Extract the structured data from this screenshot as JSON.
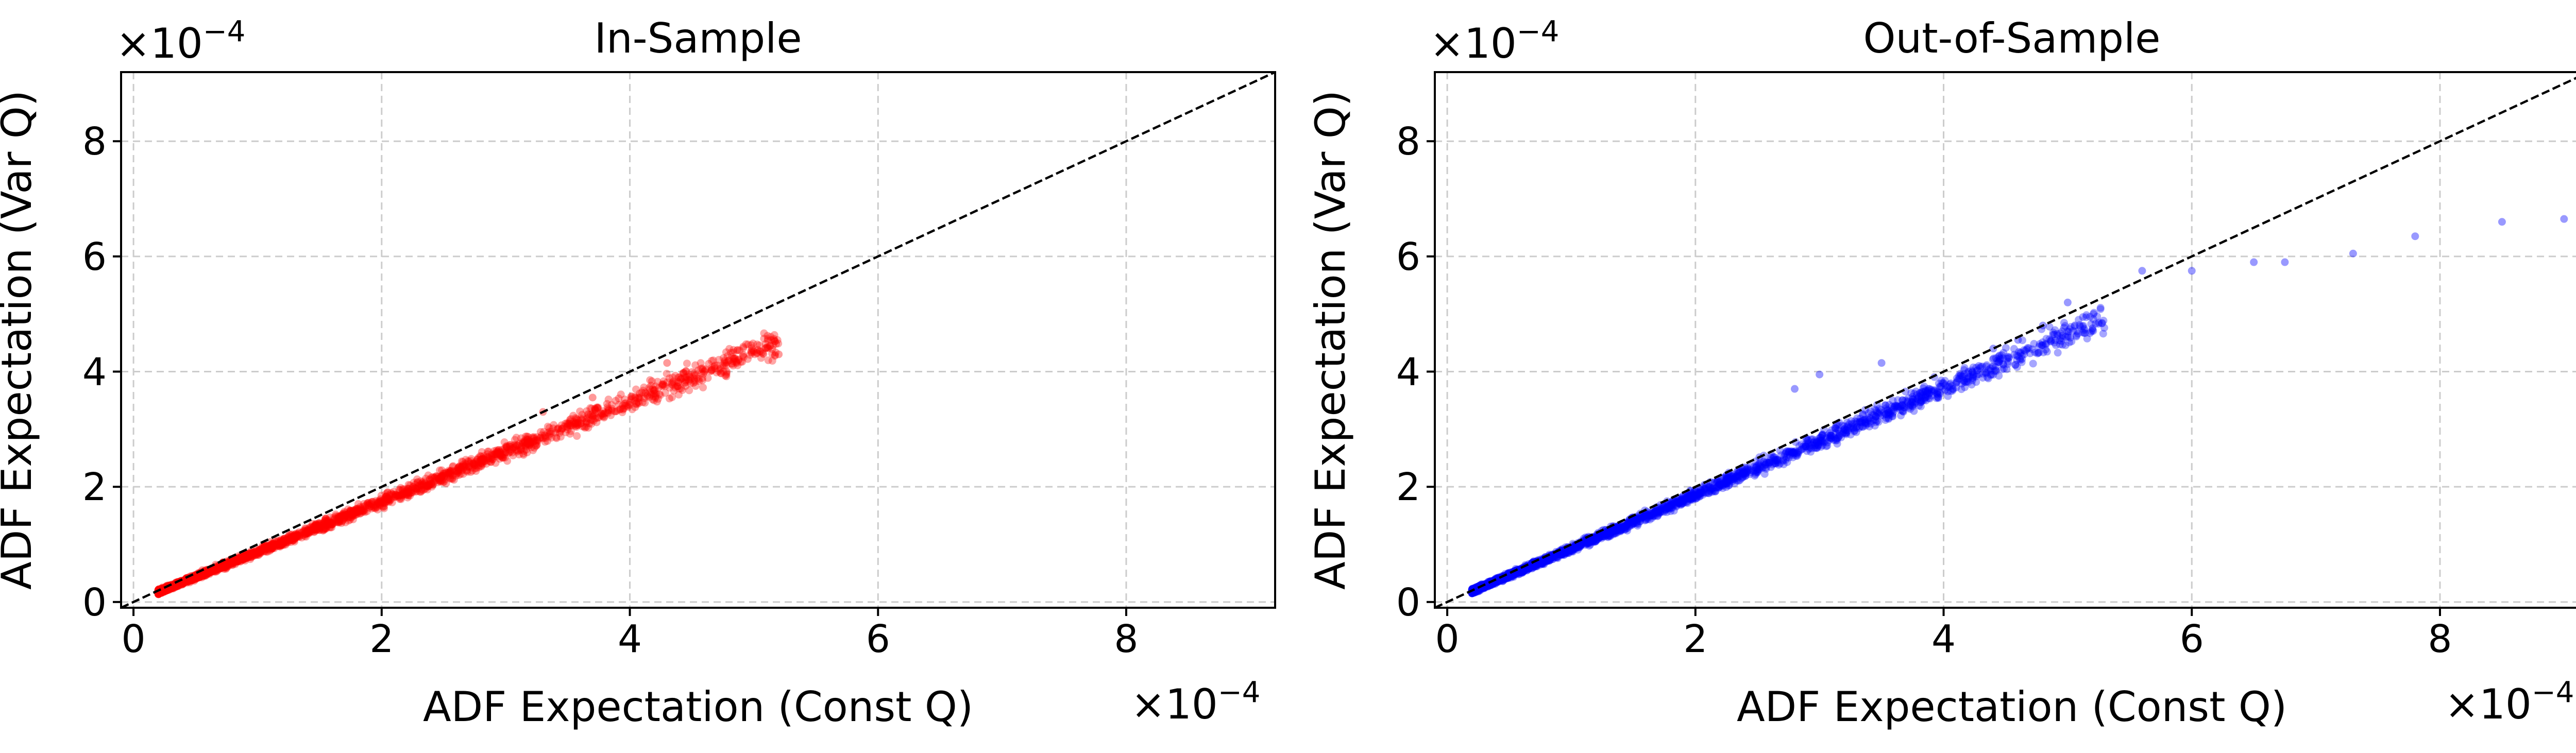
{
  "chart_data": [
    {
      "type": "scatter",
      "title": "In-Sample",
      "xlabel": "ADF Expectation (Const Q)",
      "ylabel": "ADF Expectation (Var Q)",
      "x_offset_label": "×10",
      "x_offset_exp": "−4",
      "y_offset_label": "×10",
      "y_offset_exp": "−4",
      "xlim": [
        -0.1,
        9.2
      ],
      "ylim": [
        -0.1,
        9.2
      ],
      "xticks": [
        0,
        2,
        4,
        6,
        8
      ],
      "yticks": [
        0,
        2,
        4,
        6,
        8
      ],
      "grid": true,
      "reference_line": "y = x (dashed, black)",
      "point_color": "#ff0000",
      "trend": {
        "x_min": 0.2,
        "x_max": 5.2,
        "approx_slope": 0.87
      },
      "series": [
        {
          "points": [
            [
              0.25,
              0.2
            ],
            [
              0.3,
              0.24
            ],
            [
              0.35,
              0.3
            ],
            [
              0.4,
              0.33
            ],
            [
              0.45,
              0.4
            ],
            [
              0.5,
              0.42
            ],
            [
              0.6,
              0.5
            ],
            [
              0.7,
              0.58
            ],
            [
              0.8,
              0.68
            ],
            [
              0.9,
              0.76
            ],
            [
              1.0,
              0.86
            ],
            [
              1.1,
              0.94
            ],
            [
              1.2,
              1.02
            ],
            [
              1.3,
              1.1
            ],
            [
              1.4,
              1.2
            ],
            [
              1.5,
              1.28
            ],
            [
              1.6,
              1.38
            ],
            [
              1.7,
              1.46
            ],
            [
              1.8,
              1.56
            ],
            [
              1.9,
              1.64
            ],
            [
              2.0,
              1.72
            ],
            [
              2.2,
              1.9
            ],
            [
              2.4,
              2.06
            ],
            [
              2.6,
              2.26
            ],
            [
              2.8,
              2.42
            ],
            [
              3.0,
              2.6
            ],
            [
              3.2,
              2.76
            ],
            [
              3.4,
              2.94
            ],
            [
              3.6,
              3.1
            ],
            [
              3.8,
              3.28
            ],
            [
              4.0,
              3.46
            ],
            [
              4.2,
              3.62
            ],
            [
              4.4,
              3.9
            ],
            [
              4.6,
              4.0
            ],
            [
              4.8,
              4.2
            ],
            [
              5.0,
              4.35
            ],
            [
              5.2,
              4.3
            ],
            [
              4.3,
              4.15
            ],
            [
              3.7,
              3.55
            ],
            [
              3.3,
              3.3
            ]
          ]
        }
      ]
    },
    {
      "type": "scatter",
      "title": "Out-of-Sample",
      "xlabel": "ADF Expectation (Const Q)",
      "ylabel": "ADF Expectation (Var Q)",
      "x_offset_label": "×10",
      "x_offset_exp": "−4",
      "y_offset_label": "×10",
      "y_offset_exp": "−4",
      "xlim": [
        -0.1,
        9.2
      ],
      "ylim": [
        -0.1,
        9.2
      ],
      "xticks": [
        0,
        2,
        4,
        6,
        8
      ],
      "yticks": [
        0,
        2,
        4,
        6,
        8
      ],
      "grid": true,
      "reference_line": "y = x (dashed, black)",
      "point_color": "#0000ff",
      "trend": {
        "x_min": 0.2,
        "x_max": 5.3,
        "approx_slope": 0.93
      },
      "series": [
        {
          "points": [
            [
              0.25,
              0.22
            ],
            [
              0.3,
              0.28
            ],
            [
              0.4,
              0.36
            ],
            [
              0.5,
              0.46
            ],
            [
              0.6,
              0.56
            ],
            [
              0.7,
              0.64
            ],
            [
              0.8,
              0.74
            ],
            [
              0.9,
              0.84
            ],
            [
              1.0,
              0.94
            ],
            [
              1.2,
              1.12
            ],
            [
              1.4,
              1.3
            ],
            [
              1.6,
              1.48
            ],
            [
              1.8,
              1.68
            ],
            [
              2.0,
              1.86
            ],
            [
              2.2,
              2.04
            ],
            [
              2.4,
              2.22
            ],
            [
              2.6,
              2.42
            ],
            [
              2.8,
              2.6
            ],
            [
              3.0,
              2.8
            ],
            [
              3.2,
              3.0
            ],
            [
              3.4,
              3.2
            ],
            [
              3.6,
              3.38
            ],
            [
              3.8,
              3.56
            ],
            [
              4.0,
              3.8
            ],
            [
              4.2,
              4.0
            ],
            [
              4.4,
              4.4
            ],
            [
              4.6,
              4.55
            ],
            [
              4.8,
              4.8
            ],
            [
              5.0,
              5.2
            ],
            [
              5.2,
              4.75
            ],
            [
              3.0,
              3.95
            ],
            [
              3.5,
              4.15
            ],
            [
              2.8,
              3.7
            ],
            [
              5.6,
              5.75
            ],
            [
              6.0,
              5.75
            ],
            [
              6.5,
              5.9
            ],
            [
              6.75,
              5.9
            ],
            [
              7.3,
              6.05
            ],
            [
              7.8,
              6.35
            ],
            [
              8.5,
              6.6
            ],
            [
              9.0,
              6.65
            ]
          ]
        }
      ]
    }
  ]
}
